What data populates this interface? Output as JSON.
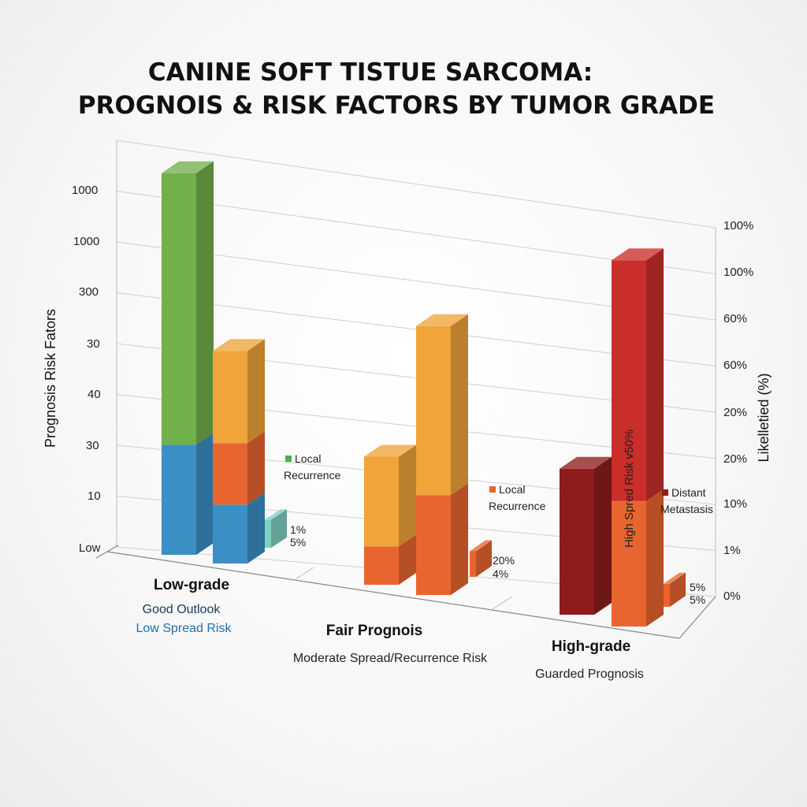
{
  "title_lines": [
    "CANINE SOFT TISTUE SARCOMA:",
    "PROGNOIS & RISK FACTORS BY TUMOR GRADE"
  ],
  "chart_data": {
    "type": "bar",
    "title": "CANINE SOFT TISTUE SARCOMA: PROGNOIS & RISK FACTORS BY TUMOR GRADE",
    "ylabel": "Prognosis Risk Fators",
    "y2label": "Likelletied (%)",
    "y_ticks": [
      "Low",
      "10",
      "30",
      "40",
      "30",
      "300",
      "1000",
      "1000"
    ],
    "y2_ticks": [
      "0%",
      "1%",
      "10%",
      "20%",
      "20%",
      "60%",
      "60%",
      "100%",
      "100%"
    ],
    "grid": true,
    "three_d": true,
    "categories": [
      {
        "name": "Low-grade",
        "subtitles": [
          "Good Outlook",
          "Low Spread Risk"
        ],
        "subtitle_colors": [
          "#163a5a",
          "#1f6fb0"
        ]
      },
      {
        "name": "Fair Prognois",
        "subtitles": [
          "Moderate Spread/Recurrence Risk"
        ],
        "subtitle_colors": [
          "#222222"
        ]
      },
      {
        "name": "High-grade",
        "subtitles": [
          "Guarded Prognosis"
        ],
        "subtitle_colors": [
          "#222222"
        ]
      }
    ],
    "bars": [
      {
        "category": "Low-grade",
        "segments": [
          {
            "value": 2.15,
            "color": "#3b8fc4"
          },
          {
            "value": 5.3,
            "color": "#72b04a"
          }
        ]
      },
      {
        "category": "Low-grade",
        "segments": [
          {
            "value": 1.15,
            "color": "#3b8fc4"
          },
          {
            "value": 1.2,
            "color": "#e9652f"
          },
          {
            "value": 1.8,
            "color": "#f0a43a"
          }
        ]
      },
      {
        "category": "Low-grade",
        "segments": [
          {
            "value": 0.55,
            "color": "#7fd0c4"
          }
        ]
      },
      {
        "category": "Fair Prognois",
        "segments": [
          {
            "value": 0.75,
            "color": "#e9652f"
          },
          {
            "value": 1.75,
            "color": "#f0a43a"
          }
        ]
      },
      {
        "category": "Fair Prognois",
        "segments": [
          {
            "value": 1.95,
            "color": "#e9652f"
          },
          {
            "value": 3.3,
            "color": "#f0a43a"
          }
        ]
      },
      {
        "category": "Fair Prognois",
        "segments": [
          {
            "value": 0.5,
            "color": "#e9652f"
          }
        ]
      },
      {
        "category": "High-grade",
        "segments": [
          {
            "value": 2.85,
            "color": "#8e1c1c"
          }
        ]
      },
      {
        "category": "High-grade",
        "segments": [
          {
            "value": 2.45,
            "color": "#e9652f"
          },
          {
            "value": 4.7,
            "color": "#c92e2a"
          }
        ]
      },
      {
        "category": "High-grade",
        "segments": [
          {
            "value": 0.45,
            "color": "#e9652f"
          }
        ]
      }
    ],
    "annotations": [
      {
        "text": "Local",
        "marker_color": "#4caf50"
      },
      {
        "text": "Recurrence"
      },
      {
        "text": "1%"
      },
      {
        "text": "5%"
      },
      {
        "text": "Local",
        "marker_color": "#e9652f"
      },
      {
        "text": "Recurrence"
      },
      {
        "text": "20%"
      },
      {
        "text": "4%"
      },
      {
        "text": "Distant",
        "marker_color": "#8e1c1c"
      },
      {
        "text": "Metastasis"
      },
      {
        "text": "5%"
      },
      {
        "text": "5%"
      }
    ],
    "vertical_label": "High Spred Risk v50%"
  }
}
